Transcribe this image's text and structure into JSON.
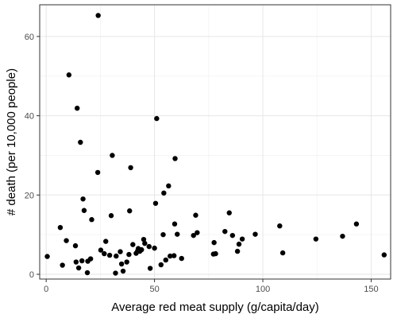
{
  "chart_data": {
    "type": "scatter",
    "title": "",
    "xlabel": "Average red meat supply (g/capita/day)",
    "ylabel": "# death (per 10,000 people)",
    "xlim": [
      -3,
      159
    ],
    "ylim": [
      -1.2,
      68
    ],
    "x_ticks": [
      0,
      50,
      100,
      150
    ],
    "y_ticks": [
      0,
      20,
      40,
      60
    ],
    "x_tick_labels": [
      "0",
      "50",
      "100",
      "150"
    ],
    "y_tick_labels": [
      "0",
      "20",
      "40",
      "60"
    ],
    "grid": true,
    "panel_border": true,
    "colors": {
      "point": "#000000",
      "grid_major": "#e6e6e6",
      "grid_minor": "#f2f2f2",
      "panel_border": "#333333"
    },
    "points": [
      [
        0.5,
        4.5
      ],
      [
        6.5,
        11.8
      ],
      [
        7.5,
        2.3
      ],
      [
        9.3,
        8.5
      ],
      [
        10.5,
        50.3
      ],
      [
        13.5,
        7.2
      ],
      [
        13.8,
        3.1
      ],
      [
        14.3,
        41.9
      ],
      [
        15,
        1.6
      ],
      [
        15.8,
        33.3
      ],
      [
        16.5,
        3.4
      ],
      [
        17,
        19
      ],
      [
        17.5,
        16.1
      ],
      [
        19,
        0.4
      ],
      [
        19.2,
        3.3
      ],
      [
        20.5,
        3.9
      ],
      [
        21,
        13.8
      ],
      [
        23.8,
        25.7
      ],
      [
        24,
        65.3
      ],
      [
        25.2,
        6.1
      ],
      [
        26.8,
        5.2
      ],
      [
        27.5,
        8.3
      ],
      [
        29.3,
        4.8
      ],
      [
        30,
        14.8
      ],
      [
        30.5,
        30
      ],
      [
        32,
        0.3
      ],
      [
        32.3,
        4.6
      ],
      [
        34.2,
        5.7
      ],
      [
        34.8,
        2.6
      ],
      [
        35.5,
        0.8
      ],
      [
        37.2,
        3.1
      ],
      [
        38.2,
        5
      ],
      [
        38.5,
        16
      ],
      [
        39,
        26.9
      ],
      [
        40,
        7.5
      ],
      [
        41.5,
        5.3
      ],
      [
        42.2,
        5.9
      ],
      [
        42.5,
        6.5
      ],
      [
        43.2,
        5.8
      ],
      [
        44,
        6.2
      ],
      [
        45,
        8.8
      ],
      [
        45.5,
        7.8
      ],
      [
        47.5,
        7
      ],
      [
        48,
        1.5
      ],
      [
        50,
        6.6
      ],
      [
        50.5,
        17.9
      ],
      [
        51,
        39.3
      ],
      [
        53,
        2.4
      ],
      [
        54,
        10
      ],
      [
        54.3,
        20.5
      ],
      [
        55.2,
        3.6
      ],
      [
        56.5,
        22.3
      ],
      [
        57.2,
        4.6
      ],
      [
        59,
        4.7
      ],
      [
        59.5,
        29.2
      ],
      [
        59.3,
        12.7
      ],
      [
        60.5,
        10.1
      ],
      [
        62.5,
        4
      ],
      [
        68,
        9.8
      ],
      [
        69,
        14.9
      ],
      [
        69.7,
        10.5
      ],
      [
        77.2,
        5.1
      ],
      [
        77.5,
        8
      ],
      [
        78.2,
        5.2
      ],
      [
        82.5,
        10.8
      ],
      [
        84.5,
        15.5
      ],
      [
        86,
        9.8
      ],
      [
        88.3,
        5.8
      ],
      [
        89,
        7.6
      ],
      [
        90.5,
        8.9
      ],
      [
        96.5,
        10.1
      ],
      [
        107.8,
        12.2
      ],
      [
        109.2,
        5.4
      ],
      [
        124.5,
        8.9
      ],
      [
        136.8,
        9.6
      ],
      [
        143.2,
        12.7
      ],
      [
        156,
        4.9
      ]
    ]
  }
}
